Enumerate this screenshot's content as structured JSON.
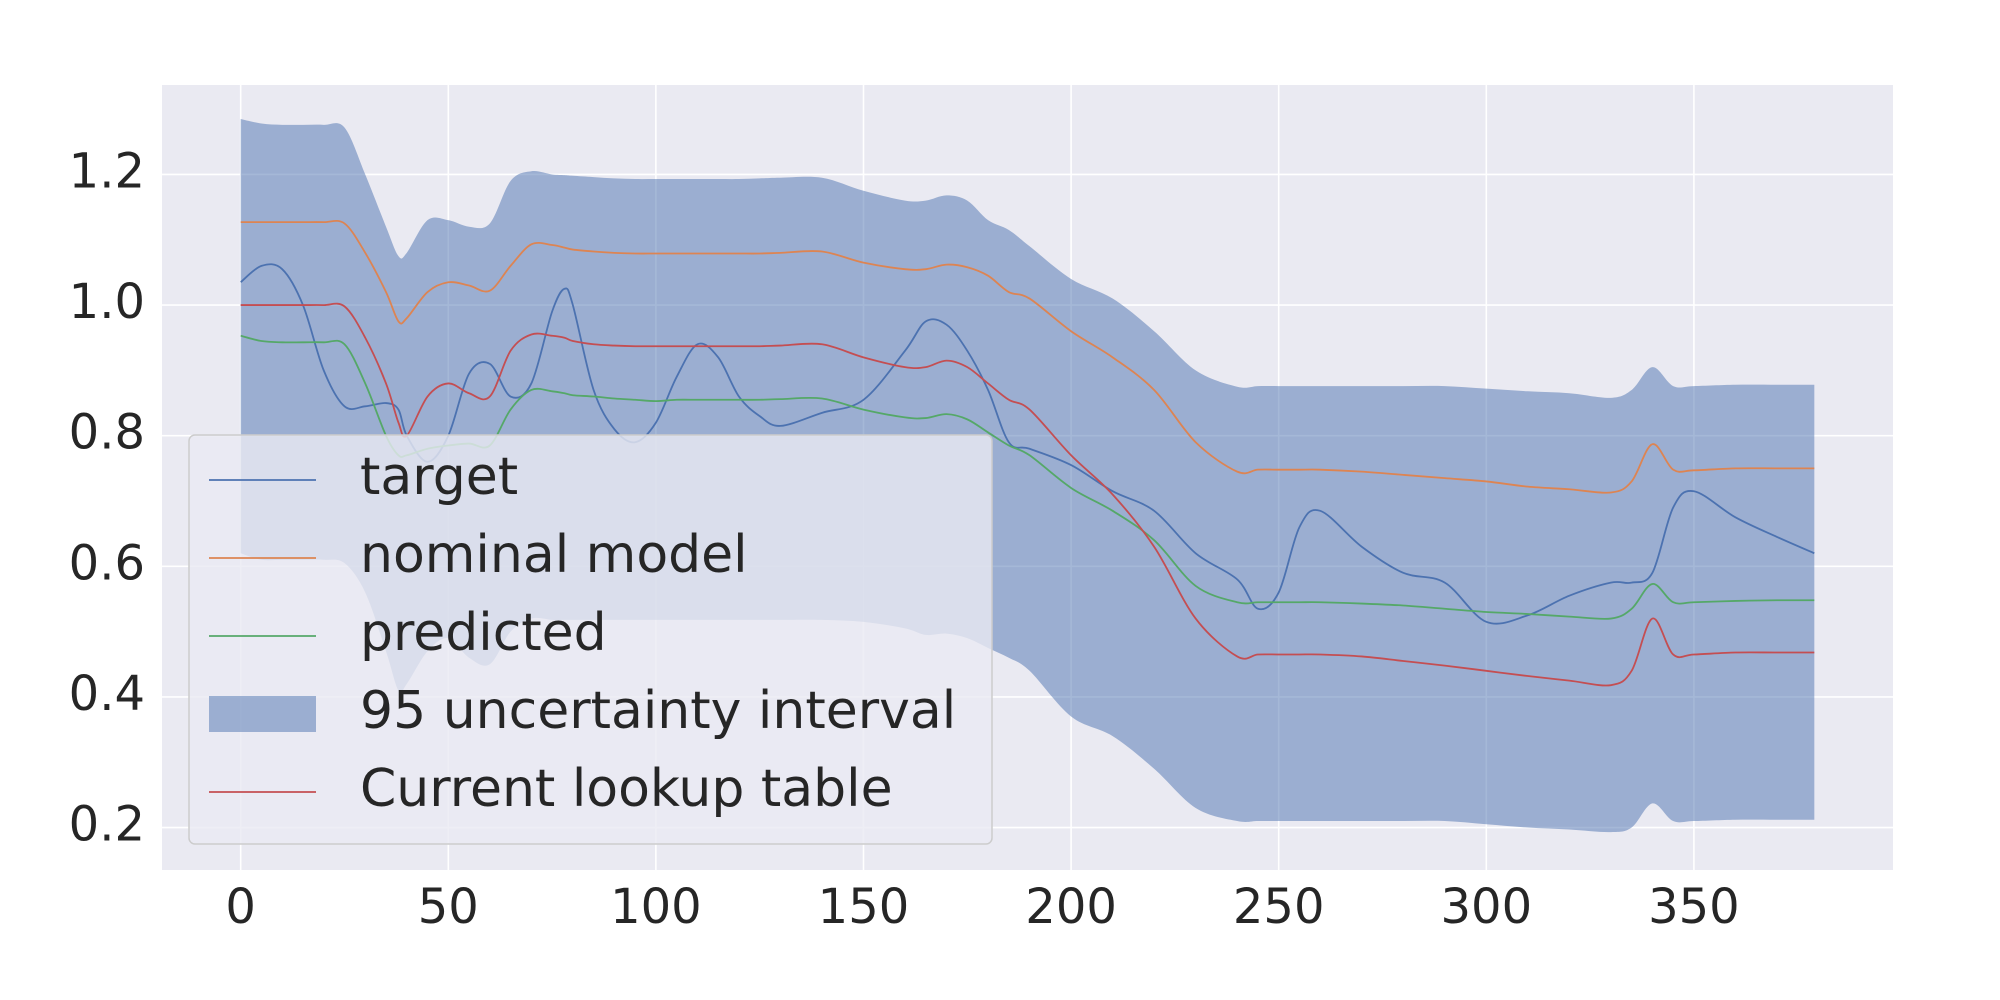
{
  "chart_data": {
    "type": "line",
    "x": [
      0,
      5,
      10,
      15,
      20,
      25,
      30,
      35,
      38,
      40,
      45,
      50,
      55,
      60,
      65,
      70,
      75,
      78,
      80,
      85,
      90,
      95,
      100,
      105,
      110,
      115,
      120,
      125,
      130,
      140,
      150,
      160,
      165,
      170,
      175,
      180,
      185,
      190,
      200,
      210,
      220,
      230,
      240,
      245,
      250,
      255,
      260,
      270,
      280,
      290,
      300,
      310,
      320,
      330,
      335,
      340,
      345,
      350,
      360,
      370,
      379
    ],
    "series": [
      {
        "name": "target",
        "color": "#4c72b0",
        "values": [
          1.035,
          1.06,
          1.055,
          1.0,
          0.9,
          0.845,
          0.845,
          0.85,
          0.84,
          0.8,
          0.76,
          0.8,
          0.895,
          0.91,
          0.86,
          0.88,
          0.99,
          1.025,
          1.0,
          0.87,
          0.81,
          0.79,
          0.82,
          0.89,
          0.94,
          0.92,
          0.86,
          0.83,
          0.815,
          0.835,
          0.855,
          0.93,
          0.975,
          0.97,
          0.93,
          0.87,
          0.79,
          0.78,
          0.755,
          0.715,
          0.685,
          0.62,
          0.58,
          0.535,
          0.56,
          0.66,
          0.685,
          0.63,
          0.59,
          0.575,
          0.515,
          0.525,
          0.555,
          0.575,
          0.575,
          0.59,
          0.69,
          0.715,
          0.675,
          0.645,
          0.62
        ]
      },
      {
        "name": "nominal model",
        "color": "#dd8452",
        "values": [
          1.127,
          1.127,
          1.127,
          1.127,
          1.127,
          1.125,
          1.08,
          1.02,
          0.975,
          0.98,
          1.02,
          1.035,
          1.03,
          1.022,
          1.06,
          1.093,
          1.092,
          1.088,
          1.085,
          1.082,
          1.08,
          1.079,
          1.079,
          1.079,
          1.079,
          1.079,
          1.079,
          1.079,
          1.08,
          1.082,
          1.065,
          1.055,
          1.055,
          1.062,
          1.058,
          1.045,
          1.02,
          1.01,
          0.96,
          0.92,
          0.87,
          0.79,
          0.745,
          0.748,
          0.748,
          0.748,
          0.748,
          0.745,
          0.74,
          0.735,
          0.73,
          0.722,
          0.718,
          0.713,
          0.73,
          0.787,
          0.748,
          0.747,
          0.75,
          0.75,
          0.75
        ]
      },
      {
        "name": "predicted",
        "color": "#55a868",
        "values": [
          0.953,
          0.945,
          0.943,
          0.943,
          0.943,
          0.94,
          0.88,
          0.8,
          0.77,
          0.77,
          0.78,
          0.785,
          0.788,
          0.785,
          0.84,
          0.87,
          0.868,
          0.865,
          0.862,
          0.86,
          0.857,
          0.855,
          0.853,
          0.855,
          0.855,
          0.855,
          0.855,
          0.855,
          0.856,
          0.857,
          0.84,
          0.828,
          0.827,
          0.833,
          0.825,
          0.805,
          0.785,
          0.77,
          0.72,
          0.685,
          0.64,
          0.57,
          0.545,
          0.545,
          0.545,
          0.545,
          0.545,
          0.543,
          0.54,
          0.535,
          0.53,
          0.527,
          0.523,
          0.52,
          0.535,
          0.573,
          0.545,
          0.545,
          0.547,
          0.548,
          0.548
        ]
      },
      {
        "name": "95 uncertainty interval",
        "color": "#4c72b0",
        "upper": [
          1.285,
          1.278,
          1.276,
          1.276,
          1.276,
          1.272,
          1.2,
          1.12,
          1.075,
          1.08,
          1.13,
          1.13,
          1.12,
          1.125,
          1.19,
          1.205,
          1.2,
          1.199,
          1.198,
          1.196,
          1.194,
          1.193,
          1.193,
          1.193,
          1.193,
          1.193,
          1.193,
          1.194,
          1.195,
          1.195,
          1.175,
          1.16,
          1.16,
          1.168,
          1.16,
          1.13,
          1.115,
          1.09,
          1.04,
          1.01,
          0.96,
          0.9,
          0.875,
          0.876,
          0.876,
          0.876,
          0.876,
          0.876,
          0.876,
          0.876,
          0.872,
          0.868,
          0.865,
          0.858,
          0.87,
          0.905,
          0.876,
          0.876,
          0.878,
          0.878,
          0.878
        ],
        "lower": [
          0.62,
          0.61,
          0.61,
          0.61,
          0.61,
          0.605,
          0.56,
          0.47,
          0.41,
          0.42,
          0.47,
          0.49,
          0.46,
          0.45,
          0.5,
          0.52,
          0.518,
          0.518,
          0.518,
          0.518,
          0.518,
          0.518,
          0.518,
          0.518,
          0.518,
          0.518,
          0.518,
          0.518,
          0.518,
          0.518,
          0.515,
          0.505,
          0.495,
          0.497,
          0.49,
          0.475,
          0.46,
          0.44,
          0.37,
          0.34,
          0.29,
          0.23,
          0.21,
          0.21,
          0.21,
          0.21,
          0.21,
          0.21,
          0.21,
          0.21,
          0.205,
          0.2,
          0.197,
          0.193,
          0.2,
          0.237,
          0.21,
          0.21,
          0.212,
          0.212,
          0.212
        ]
      },
      {
        "name": "Current lookup table",
        "color": "#c44e52",
        "values": [
          1.0,
          1.0,
          1.0,
          1.0,
          1.0,
          0.998,
          0.95,
          0.88,
          0.82,
          0.8,
          0.86,
          0.88,
          0.865,
          0.86,
          0.93,
          0.955,
          0.953,
          0.95,
          0.945,
          0.94,
          0.938,
          0.937,
          0.937,
          0.937,
          0.937,
          0.937,
          0.937,
          0.937,
          0.938,
          0.94,
          0.92,
          0.905,
          0.905,
          0.915,
          0.905,
          0.88,
          0.855,
          0.84,
          0.77,
          0.71,
          0.63,
          0.52,
          0.462,
          0.465,
          0.465,
          0.465,
          0.465,
          0.462,
          0.455,
          0.448,
          0.44,
          0.432,
          0.425,
          0.418,
          0.44,
          0.52,
          0.465,
          0.465,
          0.468,
          0.468,
          0.468
        ]
      }
    ],
    "xlim": [
      -18.95,
      397.95
    ],
    "ylim": [
      0.135,
      1.337
    ],
    "xticks": [
      0,
      50,
      100,
      150,
      200,
      250,
      300,
      350
    ],
    "yticks": [
      0.2,
      0.4,
      0.6,
      0.8,
      {
        "value": 1,
        "label": "1.0"
      },
      1.2
    ],
    "grid": true,
    "legend": "lower left"
  }
}
